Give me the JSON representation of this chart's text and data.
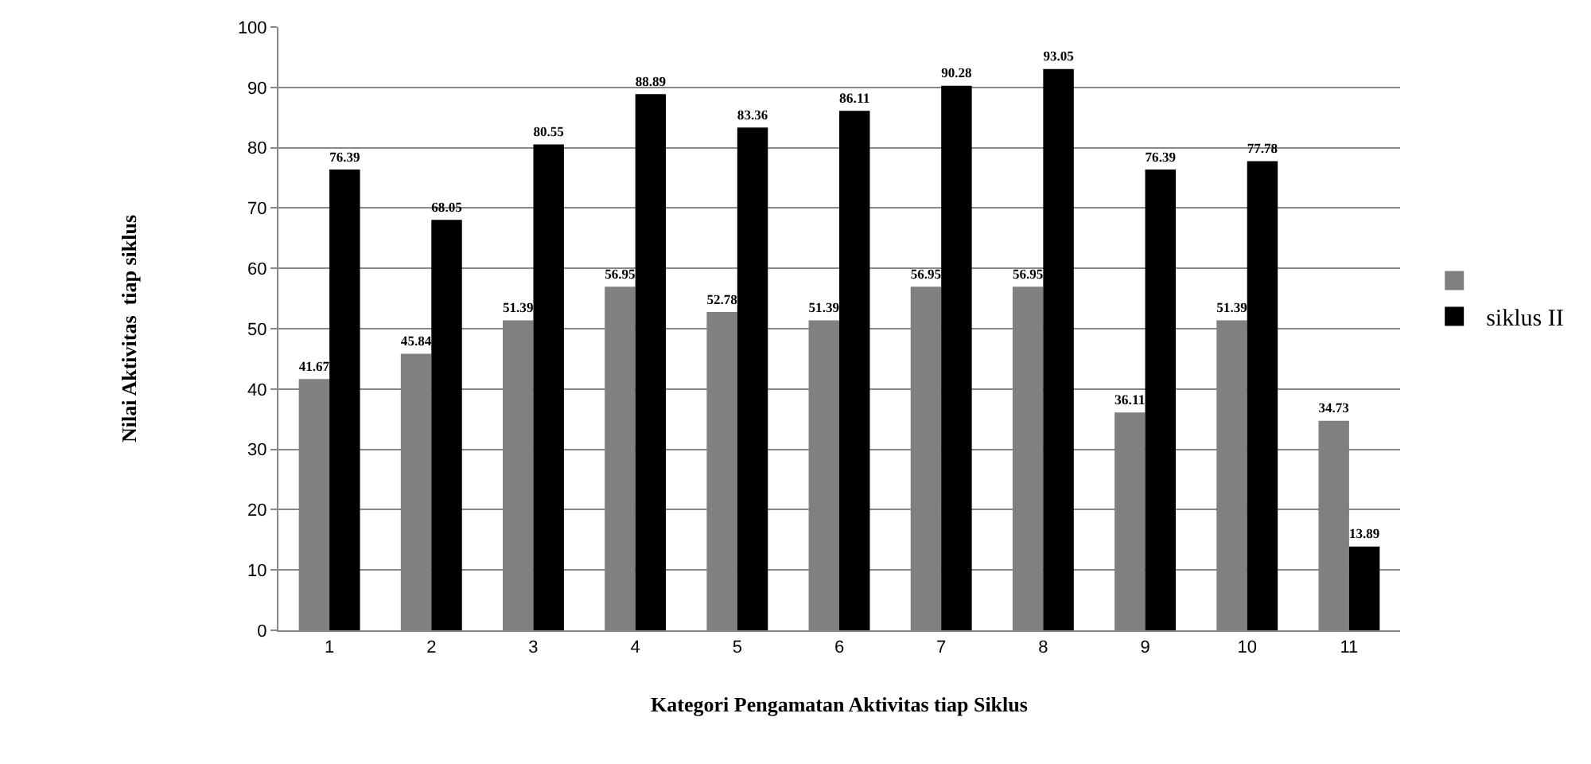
{
  "chart_data": {
    "type": "bar",
    "xlabel": "Kategori Pengamatan Aktivitas tiap Siklus",
    "ylabel": "Nilai Aktivitas  tiap siklus",
    "categories": [
      "1",
      "2",
      "3",
      "4",
      "5",
      "6",
      "7",
      "8",
      "9",
      "10",
      "11"
    ],
    "series": [
      {
        "color": "#808080",
        "values": [
          41.67,
          45.84,
          51.39,
          56.95,
          52.78,
          51.39,
          56.95,
          56.95,
          36.11,
          51.39,
          34.73
        ]
      },
      {
        "name": "siklus II",
        "color": "#000000",
        "values": [
          76.39,
          68.05,
          80.55,
          88.89,
          83.36,
          86.11,
          90.28,
          93.05,
          76.39,
          77.78,
          13.89
        ]
      }
    ],
    "ylim": [
      0,
      100
    ],
    "yticks": [
      0,
      10,
      20,
      30,
      40,
      50,
      60,
      70,
      80,
      90,
      100
    ],
    "grid": "y",
    "legend": "right",
    "data_labels": true
  }
}
